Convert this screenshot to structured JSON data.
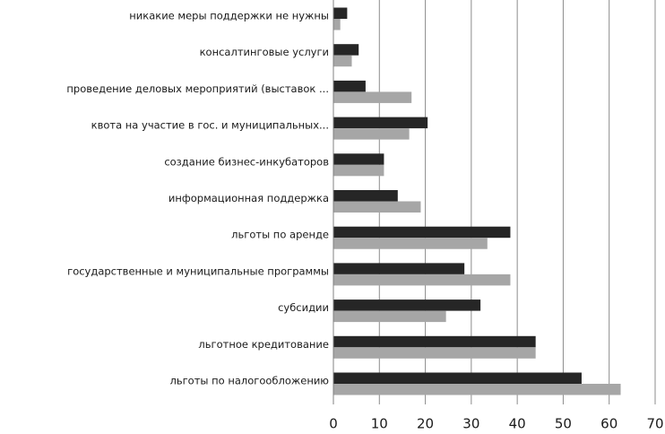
{
  "chart_data": {
    "type": "bar",
    "orientation": "horizontal",
    "title": "",
    "xlabel": "",
    "ylabel": "",
    "xlim": [
      0,
      70
    ],
    "xticks": [
      0,
      10,
      20,
      30,
      40,
      50,
      60,
      70
    ],
    "grid": true,
    "legend": "none",
    "categories": [
      "никакие меры  поддержки не нужны",
      "консалтинговые услуги",
      "проведение деловых мероприятий  (выставок ...",
      "квота на участие в гос. и муниципальных...",
      "создание бизнес-инкубаторов",
      "информационная поддержка",
      "льготы по аренде",
      "государственные и муниципальные  программы",
      "субсидии",
      "льготное кредитование",
      "льготы по налогообложению"
    ],
    "series": [
      {
        "color": "#262626",
        "values": [
          3,
          5.5,
          7,
          20.5,
          11,
          14,
          38.5,
          28.5,
          32,
          44,
          54
        ]
      },
      {
        "color": "#a6a6a6",
        "values": [
          1.5,
          4,
          17,
          16.5,
          11,
          19,
          33.5,
          38.5,
          24.5,
          44,
          62.5
        ]
      }
    ]
  }
}
